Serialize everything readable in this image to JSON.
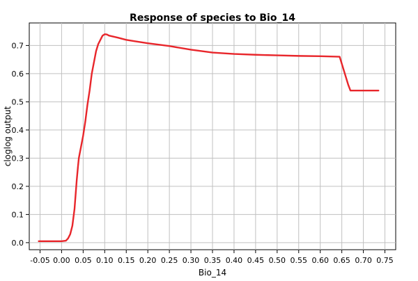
{
  "chart_data": {
    "type": "line",
    "title": "Response of species to Bio_14",
    "xlabel": "Bio_14",
    "ylabel": "cloglog output",
    "xlim": [
      -0.075,
      0.775
    ],
    "ylim": [
      -0.025,
      0.78
    ],
    "xticks": [
      -0.05,
      0.0,
      0.05,
      0.1,
      0.15,
      0.2,
      0.25,
      0.3,
      0.35,
      0.4,
      0.45,
      0.5,
      0.55,
      0.6,
      0.65,
      0.7,
      0.75
    ],
    "xtick_labels": [
      "-0.05",
      "0.00",
      "0.05",
      "0.10",
      "0.15",
      "0.20",
      "0.25",
      "0.30",
      "0.35",
      "0.40",
      "0.45",
      "0.50",
      "0.55",
      "0.60",
      "0.65",
      "0.70",
      "0.75"
    ],
    "yticks": [
      0.0,
      0.1,
      0.2,
      0.3,
      0.4,
      0.5,
      0.6,
      0.7
    ],
    "ytick_labels": [
      "0.0",
      "0.1",
      "0.2",
      "0.3",
      "0.4",
      "0.5",
      "0.6",
      "0.7"
    ],
    "grid": true,
    "legend": "none",
    "series": [
      {
        "color": "#e8262b",
        "x": [
          -0.053,
          0.0,
          0.01,
          0.015,
          0.02,
          0.025,
          0.03,
          0.035,
          0.038,
          0.04,
          0.045,
          0.05,
          0.055,
          0.06,
          0.065,
          0.07,
          0.075,
          0.08,
          0.085,
          0.09,
          0.095,
          0.1,
          0.105,
          0.11,
          0.13,
          0.15,
          0.17,
          0.2,
          0.25,
          0.3,
          0.35,
          0.4,
          0.45,
          0.5,
          0.55,
          0.6,
          0.645,
          0.655,
          0.665,
          0.67,
          0.7,
          0.735
        ],
        "y": [
          0.005,
          0.005,
          0.007,
          0.015,
          0.03,
          0.06,
          0.12,
          0.22,
          0.27,
          0.3,
          0.34,
          0.38,
          0.43,
          0.49,
          0.54,
          0.6,
          0.64,
          0.68,
          0.705,
          0.72,
          0.735,
          0.74,
          0.739,
          0.735,
          0.728,
          0.72,
          0.715,
          0.708,
          0.698,
          0.685,
          0.675,
          0.67,
          0.667,
          0.665,
          0.663,
          0.662,
          0.66,
          0.61,
          0.56,
          0.54,
          0.54,
          0.54
        ]
      }
    ]
  }
}
